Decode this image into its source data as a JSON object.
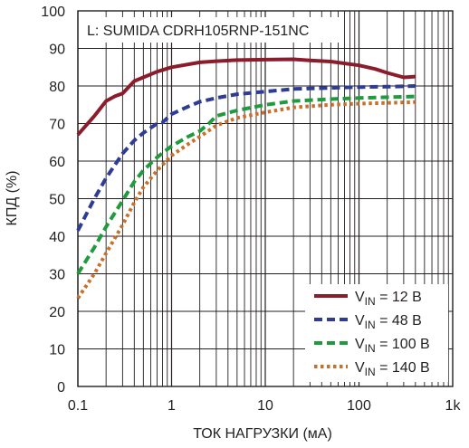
{
  "chart_data": {
    "type": "line",
    "xlabel": "ТОК НАГРУЗКИ (мА)",
    "ylabel": "КПД (%)",
    "annotation": "L: SUMIDA CDRH105RNP-151NC",
    "xscale": "log",
    "xlim": [
      0.1,
      1000
    ],
    "ylim": [
      0,
      100
    ],
    "grid": true,
    "legend_position": "bottom-right",
    "x_ticks": [
      "0.1",
      "1",
      "10",
      "100",
      "1k"
    ],
    "y_ticks": [
      "0",
      "10",
      "20",
      "30",
      "40",
      "50",
      "60",
      "70",
      "80",
      "90",
      "100"
    ],
    "series": [
      {
        "legend_main": "V",
        "legend_sub": "IN",
        "legend_value": " = 12 В",
        "color": "#8b1c2c",
        "style": "solid",
        "points": [
          [
            0.1,
            67
          ],
          [
            0.15,
            72
          ],
          [
            0.2,
            76
          ],
          [
            0.25,
            77.3
          ],
          [
            0.3,
            78
          ],
          [
            0.4,
            81.3
          ],
          [
            0.5,
            82.3
          ],
          [
            0.7,
            83.8
          ],
          [
            1,
            85
          ],
          [
            2,
            86.3
          ],
          [
            3,
            86.6
          ],
          [
            5,
            86.9
          ],
          [
            10,
            87
          ],
          [
            20,
            87.1
          ],
          [
            30,
            86.8
          ],
          [
            50,
            86.5
          ],
          [
            100,
            85.5
          ],
          [
            150,
            84.5
          ],
          [
            200,
            83.5
          ],
          [
            300,
            82.3
          ],
          [
            400,
            82.5
          ]
        ]
      },
      {
        "legend_main": "V",
        "legend_sub": "IN",
        "legend_value": " = 48 В",
        "color": "#2e3c96",
        "style": "dashed",
        "points": [
          [
            0.1,
            41.5
          ],
          [
            0.15,
            50
          ],
          [
            0.2,
            55.5
          ],
          [
            0.3,
            62
          ],
          [
            0.4,
            65.5
          ],
          [
            0.5,
            67.5
          ],
          [
            0.7,
            70
          ],
          [
            0.8,
            70.3
          ],
          [
            1,
            72.5
          ],
          [
            1.5,
            74.5
          ],
          [
            2,
            75.8
          ],
          [
            3,
            76.8
          ],
          [
            5,
            77.8
          ],
          [
            10,
            78.5
          ],
          [
            20,
            79.2
          ],
          [
            50,
            79.5
          ],
          [
            100,
            79.7
          ],
          [
            200,
            79.8
          ],
          [
            400,
            80
          ]
        ]
      },
      {
        "legend_main": "V",
        "legend_sub": "IN",
        "legend_value": " = 100 В",
        "color": "#1f9a3d",
        "style": "dashed",
        "points": [
          [
            0.1,
            30
          ],
          [
            0.15,
            37
          ],
          [
            0.2,
            42.5
          ],
          [
            0.3,
            49.5
          ],
          [
            0.4,
            54.5
          ],
          [
            0.5,
            57.5
          ],
          [
            0.7,
            61
          ],
          [
            1,
            64
          ],
          [
            1.5,
            66.5
          ],
          [
            2,
            68
          ],
          [
            2.5,
            70
          ],
          [
            3,
            72
          ],
          [
            5,
            73.5
          ],
          [
            10,
            75
          ],
          [
            20,
            76
          ],
          [
            50,
            76.5
          ],
          [
            100,
            76.8
          ],
          [
            200,
            77
          ],
          [
            400,
            77.2
          ]
        ]
      },
      {
        "legend_main": "V",
        "legend_sub": "IN",
        "legend_value": " = 140 В",
        "color": "#c8702a",
        "style": "dotted",
        "points": [
          [
            0.1,
            23.5
          ],
          [
            0.15,
            30
          ],
          [
            0.2,
            35.5
          ],
          [
            0.3,
            43
          ],
          [
            0.4,
            49
          ],
          [
            0.5,
            53
          ],
          [
            0.7,
            57.5
          ],
          [
            1,
            61.5
          ],
          [
            1.5,
            64.5
          ],
          [
            2,
            66.5
          ],
          [
            3,
            69.5
          ],
          [
            5,
            71.5
          ],
          [
            10,
            73
          ],
          [
            20,
            74.3
          ],
          [
            50,
            75
          ],
          [
            100,
            75.3
          ],
          [
            200,
            75.5
          ],
          [
            400,
            75.7
          ]
        ]
      }
    ]
  }
}
